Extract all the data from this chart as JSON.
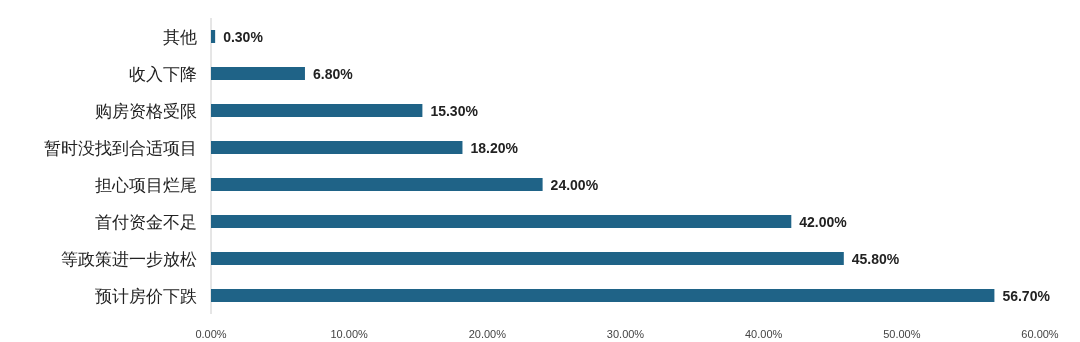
{
  "chart_data": {
    "type": "bar",
    "orientation": "horizontal",
    "categories": [
      "其他",
      "收入下降",
      "购房资格受限",
      "暂时没找到合适项目",
      "担心项目烂尾",
      "首付资金不足",
      "等政策进一步放松",
      "预计房价下跌"
    ],
    "values": [
      0.3,
      6.8,
      15.3,
      18.2,
      24.0,
      42.0,
      45.8,
      56.7
    ],
    "value_labels": [
      "0.30%",
      "6.80%",
      "15.30%",
      "18.20%",
      "24.00%",
      "42.00%",
      "45.80%",
      "56.70%"
    ],
    "color": "#1f6387",
    "xlim": [
      0,
      60
    ],
    "xticks": [
      {
        "value": 0,
        "label": "0.00%"
      },
      {
        "value": 10,
        "label": "10.00%"
      },
      {
        "value": 20,
        "label": "20.00%"
      },
      {
        "value": 30,
        "label": "30.00%"
      },
      {
        "value": 40,
        "label": "40.00%"
      },
      {
        "value": 50,
        "label": "50.00%"
      },
      {
        "value": 60,
        "label": "60.00%"
      }
    ],
    "grid": false
  }
}
